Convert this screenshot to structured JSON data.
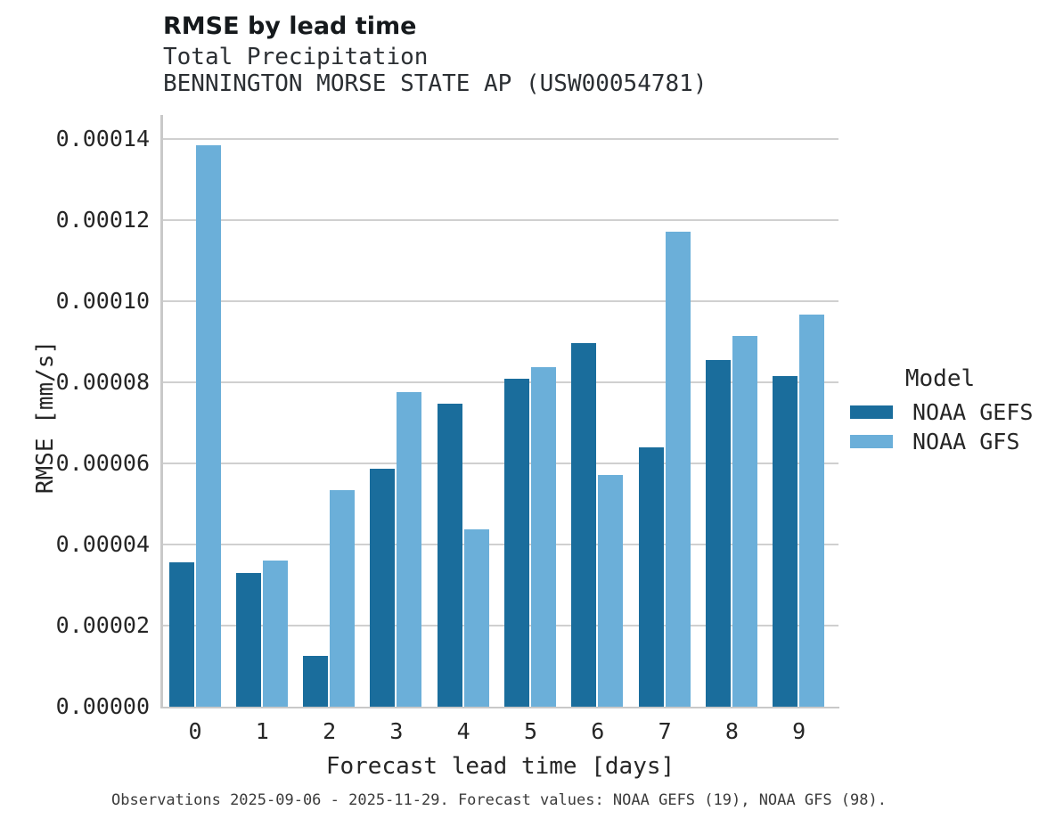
{
  "header": {
    "title": "RMSE by lead time",
    "subtitle1": "Total Precipitation",
    "subtitle2": "BENNINGTON MORSE STATE AP (USW00054781)"
  },
  "chart_data": {
    "type": "bar",
    "title": "RMSE by lead time",
    "subtitle": "Total Precipitation",
    "station": "BENNINGTON MORSE STATE AP (USW00054781)",
    "categories": [
      "0",
      "1",
      "2",
      "3",
      "4",
      "5",
      "6",
      "7",
      "8",
      "9"
    ],
    "series": [
      {
        "name": "NOAA GEFS",
        "color": "#1a6d9c",
        "values": [
          3.55e-05,
          3.3e-05,
          1.25e-05,
          5.87e-05,
          7.47e-05,
          8.09e-05,
          8.97e-05,
          6.4e-05,
          8.55e-05,
          8.15e-05
        ]
      },
      {
        "name": "NOAA GFS",
        "color": "#6bafd9",
        "values": [
          0.0001385,
          3.6e-05,
          5.34e-05,
          7.76e-05,
          4.38e-05,
          8.37e-05,
          5.72e-05,
          0.0001172,
          9.14e-05,
          9.67e-05
        ]
      }
    ],
    "xlabel": "Forecast lead time [days]",
    "ylabel": "RMSE [mm/s]",
    "ylim": [
      0,
      0.00014
    ],
    "ytick_step": 2e-05,
    "ytick_labels": [
      "0.00000",
      "0.00002",
      "0.00004",
      "0.00006",
      "0.00008",
      "0.00010",
      "0.00012",
      "0.00014"
    ],
    "grid": true,
    "legend_title": "Model",
    "legend_position": "right",
    "caption": "Observations 2025-09-06 - 2025-11-29. Forecast values: NOAA GEFS (19), NOAA GFS (98)."
  },
  "colors": {
    "noaa_gefs": "#1a6d9c",
    "noaa_gfs": "#6bafd9",
    "gridline": "#d0d0d0",
    "spine": "#c9c9c9",
    "text": "#262626"
  }
}
